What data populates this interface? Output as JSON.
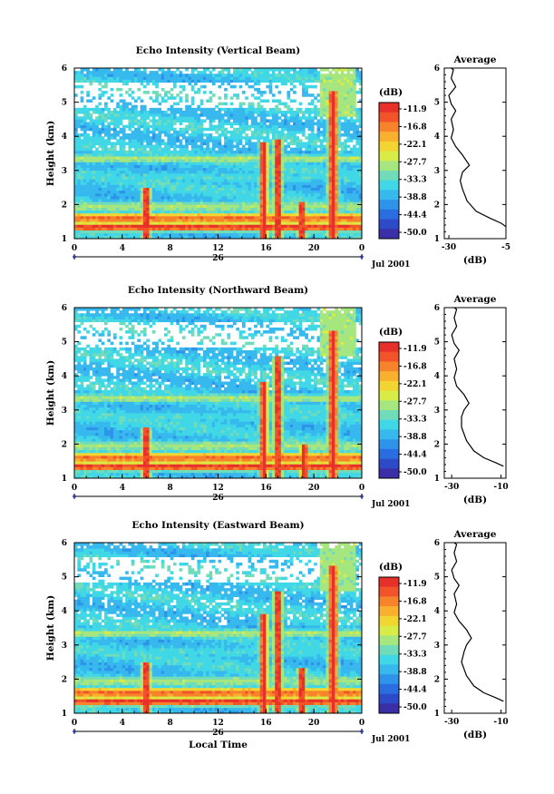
{
  "chart_data": [
    {
      "type": "heatmap",
      "title": "Echo Intensity (Vertical Beam)",
      "ylabel": "Height (km)",
      "xlabel": "",
      "xticks": [
        "0",
        "4",
        "8",
        "12",
        "16",
        "20",
        "0"
      ],
      "yticks": [
        "1",
        "2",
        "3",
        "4",
        "5",
        "6"
      ],
      "date_day": "26",
      "date_label": "Jul 2001",
      "xlim": [
        0,
        24
      ],
      "ylim": [
        1,
        6
      ],
      "peaks": [
        {
          "time": 6.0,
          "top": 2.5
        },
        {
          "time": 15.8,
          "top": 3.8
        },
        {
          "time": 17.0,
          "top": 3.9
        },
        {
          "time": 19.0,
          "top": 2.1
        },
        {
          "time": 21.6,
          "top": 5.3
        }
      ],
      "average_profile": {
        "title": "Average",
        "xlabel": "(dB)",
        "xticks": [
          "-30",
          "-5"
        ],
        "xlim": [
          -32,
          -5
        ],
        "ylim": [
          1,
          6
        ],
        "yticks": [
          "1",
          "2",
          "3",
          "4",
          "5",
          "6"
        ],
        "points": [
          [
            -5,
            1.35
          ],
          [
            -7,
            1.45
          ],
          [
            -12,
            1.6
          ],
          [
            -18,
            1.8
          ],
          [
            -22,
            2.1
          ],
          [
            -24,
            2.45
          ],
          [
            -25,
            2.7
          ],
          [
            -24,
            2.95
          ],
          [
            -21,
            3.15
          ],
          [
            -24,
            3.45
          ],
          [
            -27,
            3.7
          ],
          [
            -29,
            3.95
          ],
          [
            -28,
            4.2
          ],
          [
            -29,
            4.5
          ],
          [
            -27,
            4.75
          ],
          [
            -29,
            4.95
          ],
          [
            -30,
            5.2
          ],
          [
            -27,
            5.45
          ],
          [
            -29,
            5.7
          ],
          [
            -28,
            5.95
          ],
          [
            -29,
            6.0
          ]
        ]
      }
    },
    {
      "type": "heatmap",
      "title": "Echo Intensity (Northward Beam)",
      "ylabel": "Height (km)",
      "xlabel": "",
      "xticks": [
        "0",
        "4",
        "8",
        "12",
        "16",
        "20",
        "0"
      ],
      "yticks": [
        "1",
        "2",
        "3",
        "4",
        "5",
        "6"
      ],
      "date_day": "26",
      "date_label": "Jul 2001",
      "xlim": [
        0,
        24
      ],
      "ylim": [
        1,
        6
      ],
      "peaks": [
        {
          "time": 6.0,
          "top": 2.5
        },
        {
          "time": 15.8,
          "top": 3.8
        },
        {
          "time": 17.0,
          "top": 4.6
        },
        {
          "time": 19.2,
          "top": 2.0
        },
        {
          "time": 21.6,
          "top": 5.3
        }
      ],
      "average_profile": {
        "title": "Average",
        "xlabel": "(dB)",
        "xticks": [
          "-30",
          "-10"
        ],
        "xlim": [
          -33,
          -8
        ],
        "ylim": [
          1,
          6
        ],
        "yticks": [
          "1",
          "2",
          "3",
          "4",
          "5",
          "6"
        ],
        "points": [
          [
            -9,
            1.35
          ],
          [
            -12,
            1.45
          ],
          [
            -17,
            1.6
          ],
          [
            -21,
            1.8
          ],
          [
            -24,
            2.1
          ],
          [
            -26,
            2.5
          ],
          [
            -26,
            2.8
          ],
          [
            -25,
            3.0
          ],
          [
            -23,
            3.2
          ],
          [
            -25,
            3.45
          ],
          [
            -28,
            3.7
          ],
          [
            -29,
            3.95
          ],
          [
            -28,
            4.2
          ],
          [
            -29,
            4.5
          ],
          [
            -27,
            4.75
          ],
          [
            -29,
            4.95
          ],
          [
            -30,
            5.2
          ],
          [
            -28,
            5.45
          ],
          [
            -29,
            5.7
          ],
          [
            -28,
            5.95
          ],
          [
            -29,
            6.0
          ]
        ]
      }
    },
    {
      "type": "heatmap",
      "title": "Echo Intensity (Eastward Beam)",
      "ylabel": "Height (km)",
      "xlabel": "Local Time",
      "xticks": [
        "0",
        "4",
        "8",
        "12",
        "16",
        "20",
        "0"
      ],
      "yticks": [
        "1",
        "2",
        "3",
        "4",
        "5",
        "6"
      ],
      "date_day": "26",
      "date_label": "Jul 2001",
      "xlim": [
        0,
        24
      ],
      "ylim": [
        1,
        6
      ],
      "peaks": [
        {
          "time": 6.0,
          "top": 2.5
        },
        {
          "time": 15.8,
          "top": 3.9
        },
        {
          "time": 17.0,
          "top": 4.6
        },
        {
          "time": 19.0,
          "top": 2.3
        },
        {
          "time": 21.6,
          "top": 5.3
        }
      ],
      "average_profile": {
        "title": "Average",
        "xlabel": "(dB)",
        "xticks": [
          "-30",
          "-10"
        ],
        "xlim": [
          -33,
          -8
        ],
        "ylim": [
          1,
          6
        ],
        "yticks": [
          "1",
          "2",
          "3",
          "4",
          "5",
          "6"
        ],
        "points": [
          [
            -9,
            1.35
          ],
          [
            -12,
            1.45
          ],
          [
            -17,
            1.6
          ],
          [
            -21,
            1.8
          ],
          [
            -24,
            2.1
          ],
          [
            -26,
            2.5
          ],
          [
            -25,
            2.8
          ],
          [
            -24,
            3.0
          ],
          [
            -22,
            3.2
          ],
          [
            -24,
            3.45
          ],
          [
            -27,
            3.7
          ],
          [
            -29,
            3.95
          ],
          [
            -28,
            4.2
          ],
          [
            -29,
            4.5
          ],
          [
            -27,
            4.75
          ],
          [
            -29,
            4.95
          ],
          [
            -30,
            5.2
          ],
          [
            -28,
            5.45
          ],
          [
            -29,
            5.7
          ],
          [
            -28,
            5.95
          ],
          [
            -29,
            6.0
          ]
        ]
      }
    }
  ],
  "colorbar": {
    "unit": "(dB)",
    "labels": [
      "-11.9",
      "-16.8",
      "-22.1",
      "-27.7",
      "-33.3",
      "-38.8",
      "-44.4",
      "-50.0"
    ],
    "colors": [
      "#e8302a",
      "#f2542a",
      "#f7832b",
      "#f9b02f",
      "#f2d531",
      "#d9eb47",
      "#a6e67e",
      "#70dcb9",
      "#40d7e6",
      "#37b9ee",
      "#2d94ea",
      "#296de0",
      "#2d4bc9",
      "#3a2fa6"
    ]
  }
}
